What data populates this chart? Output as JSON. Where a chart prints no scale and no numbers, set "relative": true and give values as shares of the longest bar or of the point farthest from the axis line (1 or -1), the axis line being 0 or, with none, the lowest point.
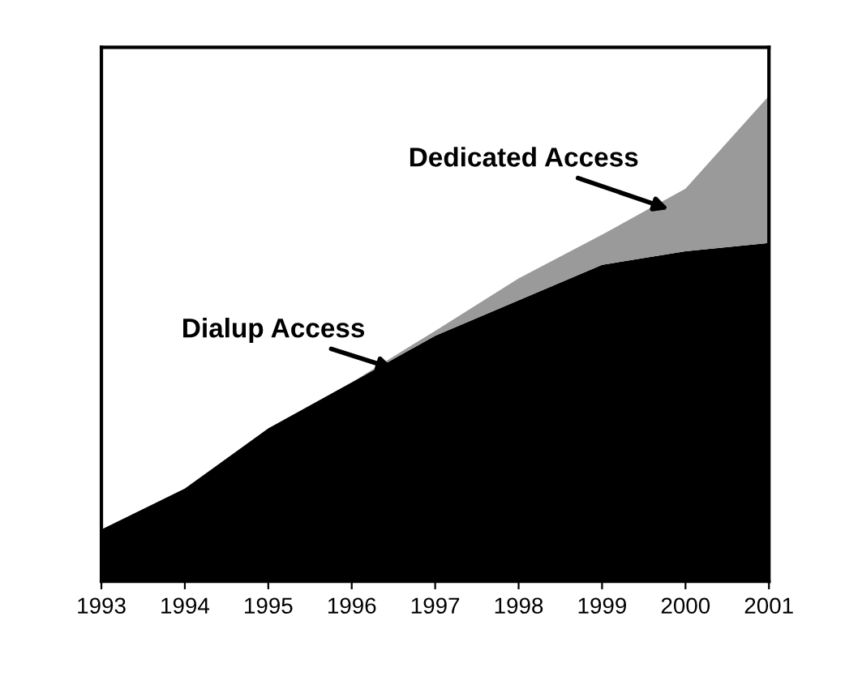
{
  "chart_data": {
    "type": "area",
    "stacked": true,
    "relative": true,
    "x": [
      1993,
      1994,
      1995,
      1996,
      1997,
      1998,
      1999,
      2000,
      2001
    ],
    "xlim": [
      1993,
      2001
    ],
    "xticks": [
      1993,
      1994,
      1995,
      1996,
      1997,
      1998,
      1999,
      2000,
      2001
    ],
    "series": [
      {
        "name": "Dialup Access",
        "color": "#000000",
        "values": [
          0.107,
          0.191,
          0.315,
          0.41,
          0.506,
          0.579,
          0.652,
          0.68,
          0.697
        ]
      },
      {
        "name": "Dedicated Access",
        "color": "#9a9a9a",
        "values": [
          0,
          0,
          0,
          0,
          0.01,
          0.045,
          0.062,
          0.129,
          0.303
        ]
      }
    ],
    "grid": false,
    "legend": false
  }
}
